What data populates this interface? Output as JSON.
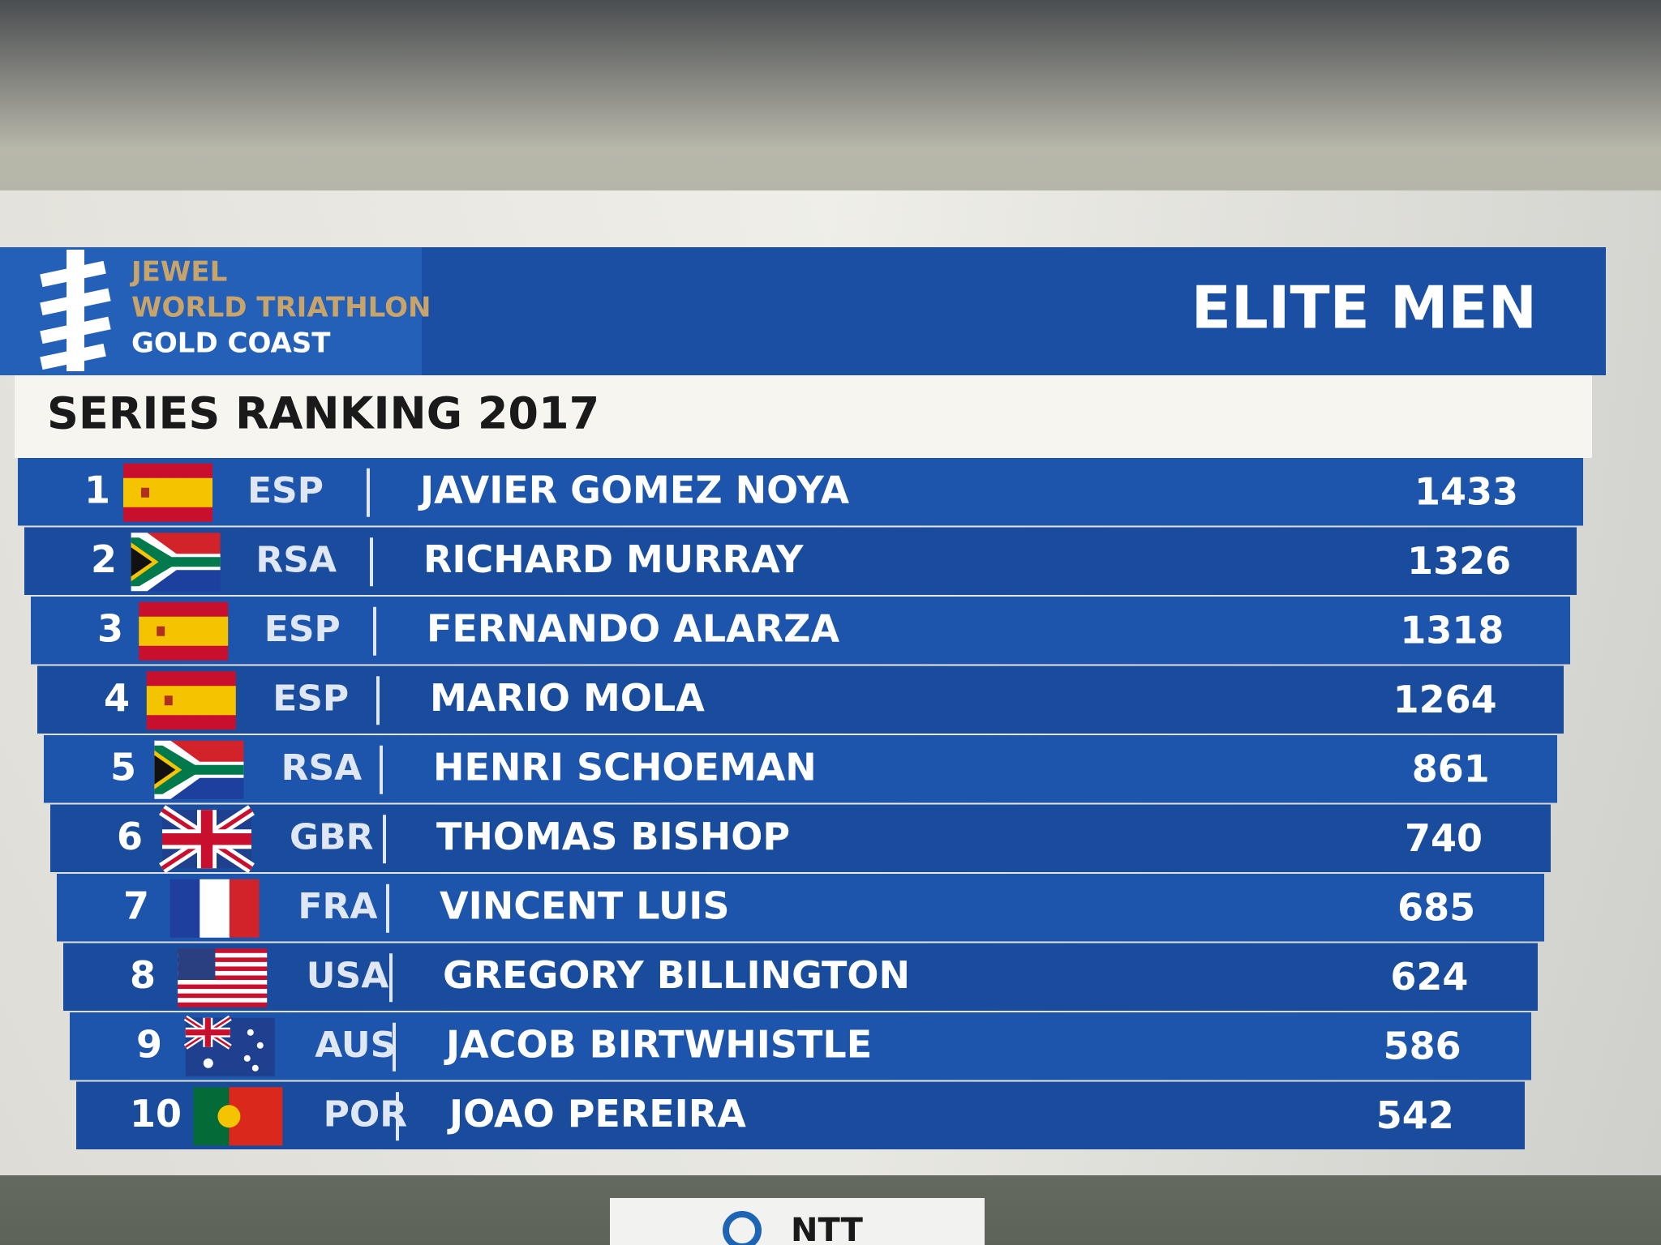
{
  "header": {
    "event": [
      "JEWEL",
      "WORLD TRIATHLON",
      "GOLD COAST"
    ],
    "category": "ELITE MEN"
  },
  "subtitle": "SERIES RANKING 2017",
  "table": {
    "rows": [
      {
        "rank": 1,
        "country": "ESP",
        "name": "JAVIER GOMEZ NOYA",
        "points": 1433
      },
      {
        "rank": 2,
        "country": "RSA",
        "name": "RICHARD MURRAY",
        "points": 1326
      },
      {
        "rank": 3,
        "country": "ESP",
        "name": "FERNANDO ALARZA",
        "points": 1318
      },
      {
        "rank": 4,
        "country": "ESP",
        "name": "MARIO MOLA",
        "points": 1264
      },
      {
        "rank": 5,
        "country": "RSA",
        "name": "HENRI SCHOEMAN",
        "points": 861
      },
      {
        "rank": 6,
        "country": "GBR",
        "name": "THOMAS BISHOP",
        "points": 740
      },
      {
        "rank": 7,
        "country": "FRA",
        "name": "VINCENT LUIS",
        "points": 685
      },
      {
        "rank": 8,
        "country": "USA",
        "name": "GREGORY BILLINGTON",
        "points": 624
      },
      {
        "rank": 9,
        "country": "AUS",
        "name": "JACOB BIRTWHISTLE",
        "points": 586
      },
      {
        "rank": 10,
        "country": "POR",
        "name": "JOAO PEREIRA",
        "points": 542
      }
    ]
  },
  "footer": {
    "sponsor": "NTT"
  }
}
